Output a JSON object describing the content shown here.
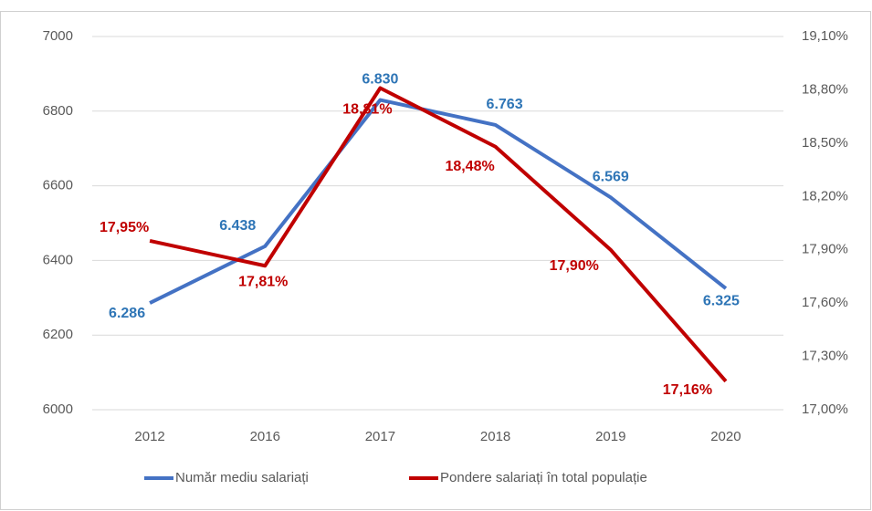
{
  "chart_data": {
    "type": "line",
    "categories": [
      "2012",
      "2016",
      "2017",
      "2018",
      "2019",
      "2020"
    ],
    "series": [
      {
        "name": "Număr mediu salariați",
        "color": "#4472c4",
        "values": [
          6286,
          6438,
          6830,
          6763,
          6569,
          6325
        ],
        "value_labels": [
          "6.286",
          "6.438",
          "6.830",
          "6.763",
          "6.569",
          "6.325"
        ]
      },
      {
        "name": "Pondere salariați în total populație",
        "color": "#c00000",
        "axis": "y2",
        "values": [
          17.95,
          17.81,
          18.81,
          18.48,
          17.9,
          17.16
        ],
        "value_labels": [
          "17,95%",
          "17,81%",
          "18,81%",
          "18,48%",
          "17,90%",
          "17,16%"
        ]
      }
    ],
    "ylim": [
      6000,
      7000
    ],
    "yticks": [
      6000,
      6200,
      6400,
      6600,
      6800,
      7000
    ],
    "y2lim": [
      17.0,
      19.1
    ],
    "y2ticks": [
      {
        "value": 17.0,
        "label": "17,00%"
      },
      {
        "value": 17.3,
        "label": "17,30%"
      },
      {
        "value": 17.6,
        "label": "17,60%"
      },
      {
        "value": 17.9,
        "label": "17,90%"
      },
      {
        "value": 18.2,
        "label": "18,20%"
      },
      {
        "value": 18.5,
        "label": "18,50%"
      },
      {
        "value": 18.8,
        "label": "18,80%"
      },
      {
        "value": 19.1,
        "label": "19,10%"
      }
    ],
    "grid": true,
    "legend": "bottom"
  }
}
